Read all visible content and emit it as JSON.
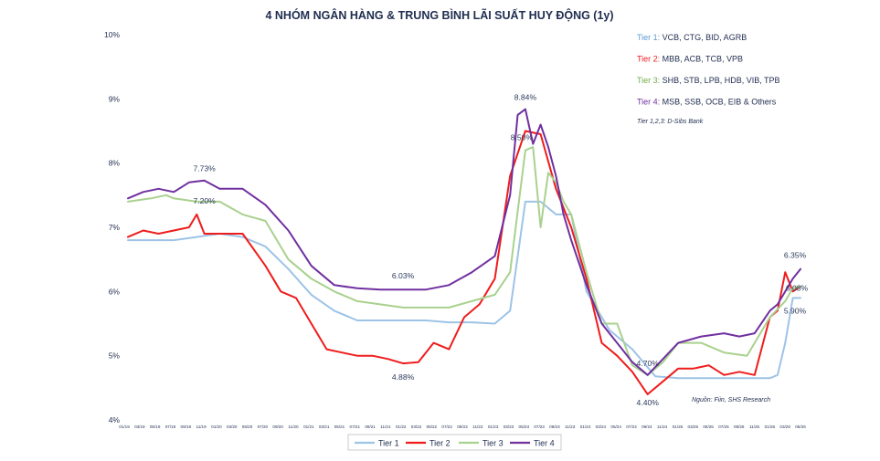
{
  "chart_data": {
    "type": "line",
    "title": "4 NHÓM NGÂN HÀNG & TRUNG BÌNH LÃI SUẤT HUY ĐỘNG (1y)",
    "ylim": [
      4,
      10
    ],
    "y_tick_labels": [
      "10%",
      "9%",
      "8%",
      "7%",
      "6%",
      "5%",
      "4%"
    ],
    "y_tick_values": [
      10,
      9,
      8,
      7,
      6,
      5,
      4
    ],
    "x_range": [
      0,
      88
    ],
    "x_tick_labels": [
      "01/19",
      "03/19",
      "05/19",
      "07/19",
      "09/19",
      "11/19",
      "01/20",
      "03/20",
      "05/20",
      "07/20",
      "09/20",
      "11/20",
      "01/21",
      "03/21",
      "05/21",
      "07/21",
      "09/21",
      "11/21",
      "01/22",
      "03/22",
      "05/22",
      "07/22",
      "09/22",
      "11/22",
      "01/23",
      "03/23",
      "05/23",
      "07/23",
      "09/23",
      "11/23",
      "01/24",
      "03/24",
      "05/24",
      "07/24",
      "09/24",
      "11/24",
      "01/25",
      "03/25",
      "05/25",
      "07/25",
      "09/25",
      "11/25",
      "01/26",
      "03/26",
      "05/26"
    ],
    "legend_placement": "bottom",
    "series": [
      {
        "name": "Tier 1",
        "color": "#9dc3e6",
        "x": [
          0,
          3,
          6,
          9,
          12,
          15,
          18,
          21,
          24,
          27,
          30,
          33,
          36,
          39,
          42,
          45,
          48,
          50,
          52,
          54,
          56,
          58,
          60,
          63,
          66,
          69,
          72,
          75,
          78,
          81,
          84,
          85,
          86,
          87,
          88
        ],
        "y": [
          6.8,
          6.8,
          6.8,
          6.85,
          6.9,
          6.85,
          6.7,
          6.35,
          5.95,
          5.7,
          5.55,
          5.55,
          5.55,
          5.55,
          5.52,
          5.52,
          5.5,
          5.7,
          7.4,
          7.4,
          7.2,
          7.2,
          6.0,
          5.4,
          5.1,
          4.68,
          4.65,
          4.65,
          4.65,
          4.65,
          4.65,
          4.7,
          5.2,
          5.9,
          5.9
        ]
      },
      {
        "name": "Tier 2",
        "color": "#ef1c1c",
        "x": [
          0,
          2,
          4,
          6,
          8,
          9,
          10,
          12,
          15,
          18,
          20,
          22,
          24,
          26,
          28,
          30,
          32,
          34,
          36,
          38,
          40,
          42,
          44,
          46,
          48,
          50,
          52,
          54,
          56,
          58,
          60,
          62,
          64,
          66,
          68,
          70,
          72,
          74,
          76,
          78,
          80,
          82,
          84,
          85,
          86,
          87,
          88
        ],
        "y": [
          6.85,
          6.95,
          6.9,
          6.95,
          7.0,
          7.2,
          6.9,
          6.9,
          6.9,
          6.4,
          6.0,
          5.9,
          5.5,
          5.1,
          5.05,
          5.0,
          5.0,
          4.95,
          4.88,
          4.9,
          5.2,
          5.1,
          5.6,
          5.8,
          6.2,
          7.8,
          8.5,
          8.45,
          7.6,
          7.0,
          6.2,
          5.2,
          5.0,
          4.75,
          4.4,
          4.6,
          4.8,
          4.8,
          4.85,
          4.7,
          4.75,
          4.7,
          5.6,
          5.7,
          6.3,
          6.0,
          6.08
        ]
      },
      {
        "name": "Tier 3",
        "color": "#a9d18e",
        "x": [
          0,
          3,
          5,
          6,
          9,
          12,
          15,
          18,
          21,
          24,
          27,
          30,
          33,
          36,
          39,
          42,
          45,
          48,
          50,
          52,
          53,
          54,
          55,
          56,
          57,
          58,
          60,
          62,
          64,
          66,
          68,
          70,
          72,
          75,
          78,
          81,
          84,
          86,
          87,
          88
        ],
        "y": [
          7.4,
          7.45,
          7.5,
          7.45,
          7.4,
          7.4,
          7.2,
          7.1,
          6.5,
          6.2,
          6.0,
          5.85,
          5.8,
          5.75,
          5.75,
          5.75,
          5.85,
          5.95,
          6.3,
          8.2,
          8.25,
          7.0,
          7.85,
          7.7,
          7.4,
          7.2,
          6.3,
          5.5,
          5.5,
          4.85,
          4.7,
          4.9,
          5.2,
          5.2,
          5.05,
          5.0,
          5.6,
          5.85,
          6.05,
          6.08
        ]
      },
      {
        "name": "Tier 4",
        "color": "#7030a0",
        "x": [
          0,
          2,
          4,
          6,
          8,
          10,
          12,
          15,
          18,
          21,
          24,
          27,
          30,
          33,
          36,
          39,
          42,
          45,
          48,
          50,
          51,
          52,
          53,
          54,
          55,
          56,
          57,
          58,
          60,
          62,
          64,
          66,
          68,
          70,
          72,
          75,
          78,
          80,
          82,
          84,
          85,
          86,
          87,
          88
        ],
        "y": [
          7.45,
          7.55,
          7.6,
          7.55,
          7.7,
          7.73,
          7.6,
          7.6,
          7.35,
          6.95,
          6.4,
          6.1,
          6.05,
          6.03,
          6.03,
          6.03,
          6.1,
          6.3,
          6.55,
          7.5,
          8.75,
          8.84,
          8.3,
          8.6,
          8.25,
          7.8,
          7.2,
          6.8,
          6.1,
          5.5,
          5.2,
          4.9,
          4.7,
          4.95,
          5.2,
          5.3,
          5.35,
          5.3,
          5.35,
          5.7,
          5.8,
          6.0,
          6.2,
          6.35
        ]
      }
    ],
    "annotations": [
      {
        "text": "7.73%",
        "x": 10,
        "y": 7.73
      },
      {
        "text": "7.20%",
        "x": 10,
        "y": 7.2
      },
      {
        "text": "6.03%",
        "x": 36,
        "y": 6.03
      },
      {
        "text": "4.88%",
        "x": 36,
        "y": 4.88
      },
      {
        "text": "8.84%",
        "x": 52,
        "y": 8.84
      },
      {
        "text": "8.50%",
        "x": 52,
        "y": 8.5
      },
      {
        "text": "4.70%",
        "x": 68,
        "y": 4.7
      },
      {
        "text": "4.40%",
        "x": 68,
        "y": 4.4
      },
      {
        "text": "6.35%",
        "x": 88,
        "y": 6.35
      },
      {
        "text": "6.08%",
        "x": 88,
        "y": 6.08
      },
      {
        "text": "5.90%",
        "x": 88,
        "y": 5.9
      }
    ],
    "tier_notes": [
      {
        "prefix": "Tier 1:",
        "text": " VCB, CTG, BID, AGRB",
        "color": "#5b9bd5"
      },
      {
        "prefix": "Tier 2:",
        "text": " MBB, ACB, TCB, VPB",
        "color": "#ef1c1c"
      },
      {
        "prefix": "Tier 3:",
        "text": " SHB, STB, LPB, HDB, VIB, TPB",
        "color": "#70ad47"
      },
      {
        "prefix": "Tier 4:",
        "text": " MSB, SSB, OCB, EIB & Others",
        "color": "#7030a0"
      }
    ],
    "dsib_note": "Tier 1,2,3: D-Sibs Bank",
    "source_note": "Nguồn: Fiin, SHS Research"
  }
}
